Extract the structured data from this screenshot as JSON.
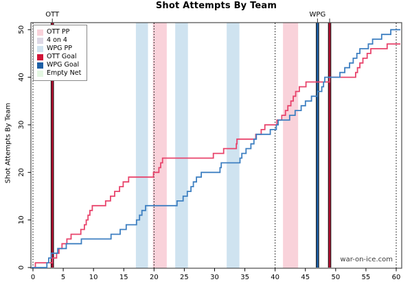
{
  "title": "Shot Attempts By Team",
  "watermark": "war-on-ice.com",
  "colors": {
    "ott_pp": "#f9d2da",
    "four_on_four": "#ddd8e6",
    "wpg_pp": "#cfe3f0",
    "ott_goal": "#d11438",
    "wpg_goal": "#1d5fa5",
    "empty_net": "#e4f7e2",
    "ott_line": "#e8436b",
    "wpg_line": "#3d7fc1",
    "goal_line_ott": "#b01030",
    "goal_line_wpg": "#1d5fa5",
    "goal_line_edge": "#111111",
    "box": "#4a4a4a",
    "tick_text": "#000000",
    "watermark_text": "#3a3a3a"
  },
  "legend": {
    "items": [
      {
        "label": "OTT PP",
        "color_key": "ott_pp"
      },
      {
        "label": "4 on 4",
        "color_key": "four_on_four"
      },
      {
        "label": "WPG PP",
        "color_key": "wpg_pp"
      },
      {
        "label": "OTT Goal",
        "color_key": "ott_goal"
      },
      {
        "label": "WPG Goal",
        "color_key": "wpg_goal"
      },
      {
        "label": "Empty Net",
        "color_key": "empty_net"
      }
    ]
  },
  "chart_data": {
    "type": "line",
    "subtype": "cumulative-step",
    "title": "Shot Attempts By Team",
    "xlabel": "",
    "ylabel": "Shot Attempts By Team",
    "xlim": [
      0,
      60
    ],
    "ylim": [
      0,
      50
    ],
    "x_ticks": [
      0,
      5,
      10,
      15,
      20,
      25,
      30,
      35,
      40,
      45,
      50,
      55,
      60
    ],
    "y_ticks": [
      0,
      10,
      20,
      30,
      40,
      50
    ],
    "grid": false,
    "legend_position": "top-left",
    "period_lines": [
      0,
      20,
      40,
      60
    ],
    "bands": [
      {
        "kind": "wpg_pp",
        "label": "WPG PP",
        "start": 17.0,
        "end": 19.0
      },
      {
        "kind": "ott_pp",
        "label": "OTT PP",
        "start": 19.8,
        "end": 22.1
      },
      {
        "kind": "wpg_pp",
        "label": "WPG PP",
        "start": 23.5,
        "end": 25.6
      },
      {
        "kind": "wpg_pp",
        "label": "WPG PP",
        "start": 32.0,
        "end": 34.1
      },
      {
        "kind": "ott_pp",
        "label": "OTT PP",
        "start": 41.3,
        "end": 43.8
      }
    ],
    "goals": [
      {
        "team": "OTT",
        "time": 3.2,
        "label": "OTT"
      },
      {
        "team": "WPG",
        "time": 47.0,
        "label": "WPG"
      },
      {
        "team": "OTT",
        "time": 49.0,
        "label": ""
      }
    ],
    "series": [
      {
        "name": "OTT",
        "color_key": "ott_line",
        "steps": [
          [
            0.4,
            1
          ],
          [
            3.2,
            2
          ],
          [
            3.9,
            3
          ],
          [
            4.3,
            4
          ],
          [
            4.8,
            5
          ],
          [
            5.6,
            6
          ],
          [
            6.3,
            7
          ],
          [
            7.9,
            8
          ],
          [
            8.5,
            9
          ],
          [
            8.8,
            10
          ],
          [
            9.1,
            11
          ],
          [
            9.4,
            12
          ],
          [
            9.8,
            13
          ],
          [
            12.0,
            14
          ],
          [
            12.8,
            15
          ],
          [
            13.5,
            16
          ],
          [
            14.3,
            17
          ],
          [
            14.9,
            18
          ],
          [
            15.8,
            19
          ],
          [
            19.9,
            20
          ],
          [
            20.8,
            21
          ],
          [
            21.1,
            22
          ],
          [
            21.4,
            23
          ],
          [
            29.8,
            24
          ],
          [
            31.5,
            25
          ],
          [
            33.6,
            26
          ],
          [
            33.7,
            27
          ],
          [
            36.8,
            28
          ],
          [
            37.7,
            29
          ],
          [
            38.3,
            30
          ],
          [
            40.3,
            31
          ],
          [
            41.1,
            32
          ],
          [
            41.7,
            33
          ],
          [
            42.1,
            34
          ],
          [
            42.6,
            35
          ],
          [
            43.0,
            36
          ],
          [
            43.4,
            37
          ],
          [
            44.0,
            38
          ],
          [
            45.1,
            39
          ],
          [
            49.0,
            40
          ],
          [
            53.3,
            41
          ],
          [
            53.6,
            42
          ],
          [
            54.0,
            43
          ],
          [
            54.5,
            44
          ],
          [
            55.2,
            45
          ],
          [
            55.8,
            46
          ],
          [
            58.5,
            47
          ]
        ],
        "final_value": 47
      },
      {
        "name": "WPG",
        "color_key": "wpg_line",
        "steps": [
          [
            2.3,
            1
          ],
          [
            2.6,
            2
          ],
          [
            3.0,
            3
          ],
          [
            4.1,
            4
          ],
          [
            5.5,
            5
          ],
          [
            8.0,
            6
          ],
          [
            12.9,
            7
          ],
          [
            14.4,
            8
          ],
          [
            15.4,
            9
          ],
          [
            17.1,
            10
          ],
          [
            17.6,
            11
          ],
          [
            18.0,
            12
          ],
          [
            18.6,
            13
          ],
          [
            23.8,
            14
          ],
          [
            24.8,
            15
          ],
          [
            25.5,
            16
          ],
          [
            26.1,
            17
          ],
          [
            26.5,
            18
          ],
          [
            27.0,
            19
          ],
          [
            27.8,
            20
          ],
          [
            30.9,
            21
          ],
          [
            31.1,
            22
          ],
          [
            34.2,
            23
          ],
          [
            34.5,
            24
          ],
          [
            35.2,
            25
          ],
          [
            36.0,
            26
          ],
          [
            36.5,
            27
          ],
          [
            36.9,
            28
          ],
          [
            39.2,
            29
          ],
          [
            40.2,
            30
          ],
          [
            40.5,
            31
          ],
          [
            42.4,
            32
          ],
          [
            43.3,
            33
          ],
          [
            44.3,
            34
          ],
          [
            45.0,
            35
          ],
          [
            46.0,
            36
          ],
          [
            47.0,
            37
          ],
          [
            47.7,
            38
          ],
          [
            48.0,
            39
          ],
          [
            48.2,
            40
          ],
          [
            50.7,
            41
          ],
          [
            51.5,
            42
          ],
          [
            52.3,
            43
          ],
          [
            52.9,
            44
          ],
          [
            53.5,
            45
          ],
          [
            54.0,
            46
          ],
          [
            55.4,
            47
          ],
          [
            56.1,
            48
          ],
          [
            57.6,
            49
          ],
          [
            59.1,
            50
          ]
        ],
        "final_value": 50
      }
    ]
  }
}
